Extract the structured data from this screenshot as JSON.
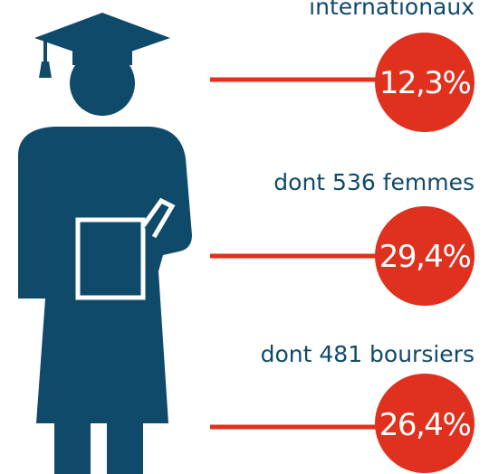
{
  "items": [
    {
      "label": "internationaux",
      "value": "12,3%"
    },
    {
      "label": "dont 536 femmes",
      "value": "29,4%"
    },
    {
      "label": "dont 481 boursiers",
      "value": "26,4%"
    }
  ]
}
